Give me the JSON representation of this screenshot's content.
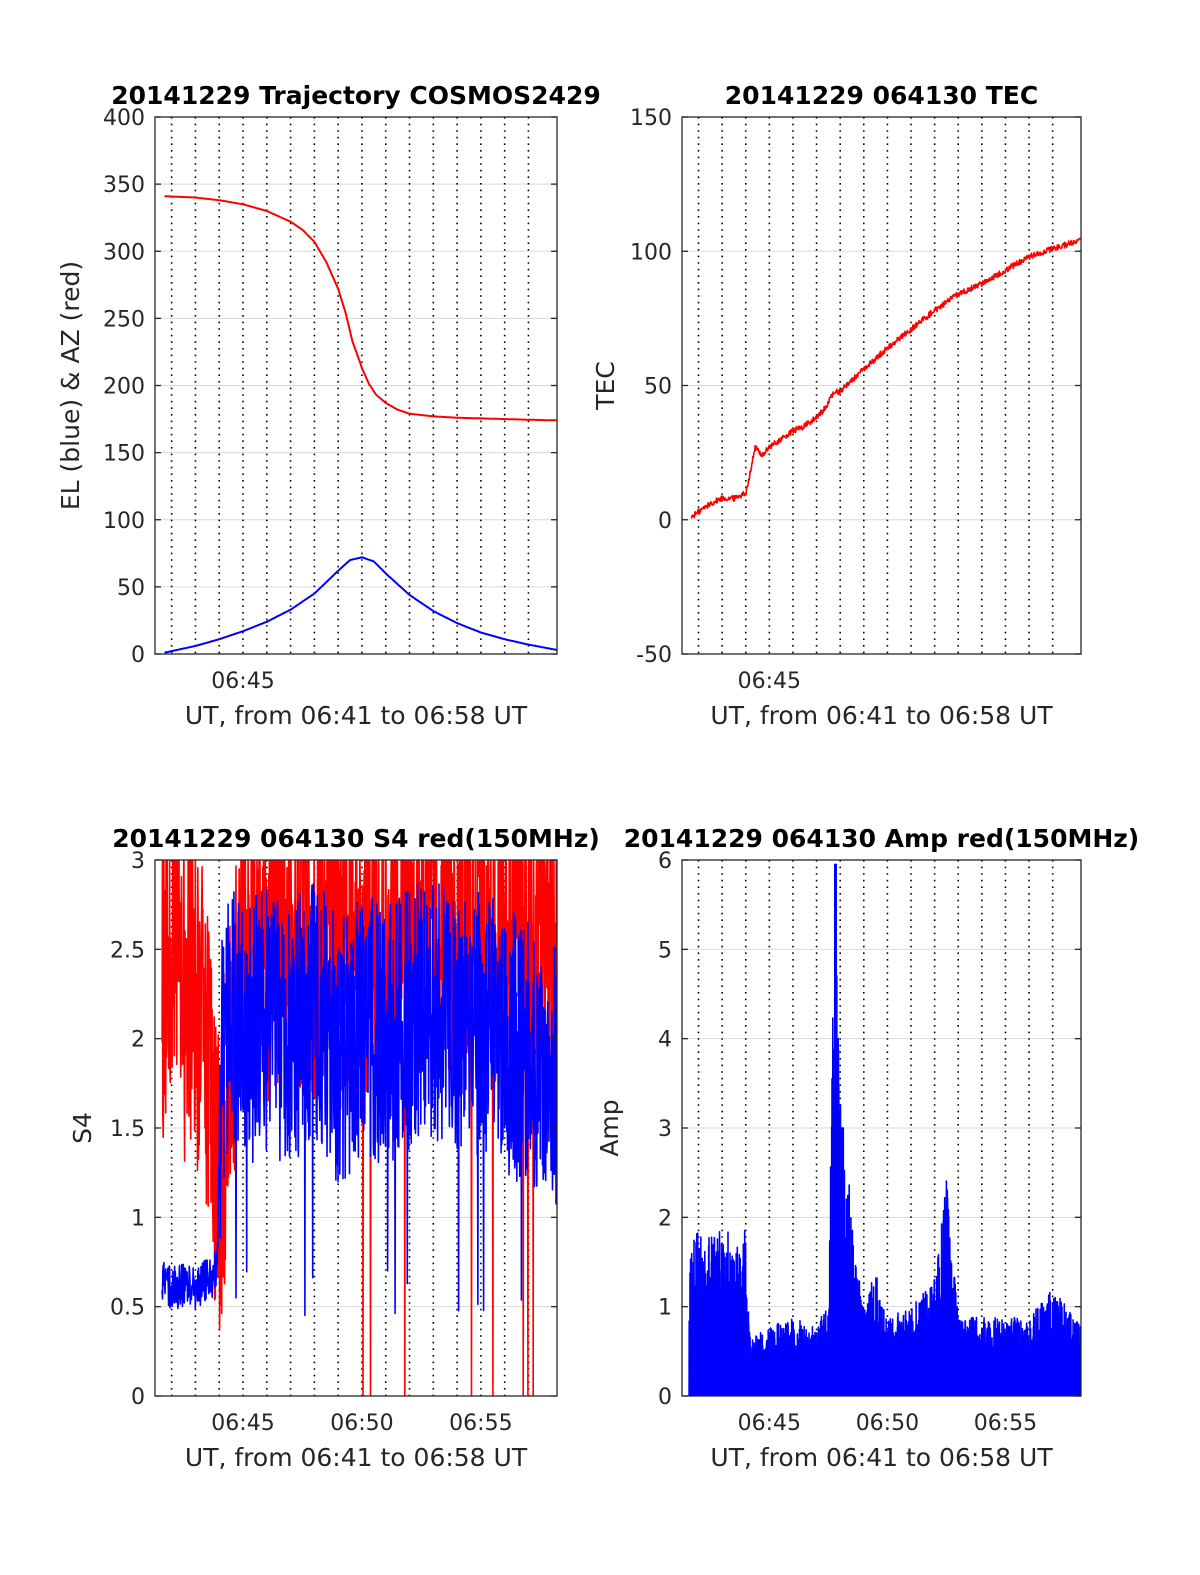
{
  "figure": {
    "colors": {
      "azimuth": "#ff0000",
      "elevation": "#0000ff",
      "tec": "#ff0000",
      "s4_red": "#ff0000",
      "s4_blue": "#0000ff",
      "amp": "#0000ff",
      "axes": "#262626",
      "grid": "#d9d9d9"
    }
  },
  "chart_data": [
    {
      "id": "trajectory",
      "type": "line",
      "title": "20141229 Trajectory COSMOS2429",
      "xlabel": "UT, from 06:41 to 06:58 UT",
      "ylabel": "EL (blue) & AZ (red)",
      "x_unit": "minutes after 06:00 UT",
      "xlim": [
        41.3,
        58.2
      ],
      "ylim": [
        0,
        400
      ],
      "yticks": [
        0,
        50,
        100,
        150,
        200,
        250,
        300,
        350,
        400
      ],
      "xtick_labels": [
        {
          "x": 45,
          "label": "06:45"
        }
      ],
      "vertical_dotted_grid_x": [
        42,
        43,
        44,
        45,
        46,
        47,
        48,
        49,
        50,
        51,
        52,
        53,
        54,
        55,
        56,
        57
      ],
      "grid": true,
      "series": [
        {
          "color": "#ff0000",
          "x": [
            41.7,
            43,
            44,
            45,
            46,
            47,
            47.5,
            48,
            48.5,
            49,
            49.3,
            49.6,
            50,
            50.3,
            50.6,
            51,
            51.5,
            52,
            53,
            54,
            55,
            56,
            57,
            58.2
          ],
          "y": [
            341,
            340,
            338,
            335,
            330,
            322,
            316,
            307,
            292,
            272,
            255,
            233,
            213,
            201,
            193,
            187,
            182,
            179,
            177,
            176,
            175.5,
            175,
            174.5,
            174
          ]
        },
        {
          "color": "#0000ff",
          "x": [
            41.7,
            43,
            44,
            45,
            46,
            47,
            48,
            49,
            49.5,
            50,
            50.5,
            51,
            52,
            53,
            54,
            55,
            56,
            57,
            58.2
          ],
          "y": [
            1,
            6,
            11,
            17,
            24,
            33,
            45,
            62,
            70,
            72,
            69,
            60,
            44,
            32,
            23,
            16,
            11,
            7,
            3
          ]
        }
      ]
    },
    {
      "id": "tec",
      "type": "line",
      "title": "20141229 064130 TEC",
      "xlabel": "UT, from 06:41 to 06:58 UT",
      "ylabel": "TEC",
      "x_unit": "minutes after 06:00 UT",
      "xlim": [
        41.3,
        58.2
      ],
      "ylim": [
        -50,
        150
      ],
      "yticks": [
        -50,
        0,
        50,
        100,
        150
      ],
      "xtick_labels": [
        {
          "x": 45,
          "label": "06:45"
        }
      ],
      "vertical_dotted_grid_x": [
        42,
        43,
        44,
        45,
        46,
        47,
        48,
        49,
        50,
        51,
        52,
        53,
        54,
        55,
        56,
        57
      ],
      "grid": true,
      "series": [
        {
          "color": "#ff0000",
          "x": [
            41.7,
            42,
            42.5,
            43,
            43.5,
            44,
            44.2,
            44.4,
            44.7,
            45,
            45.5,
            46,
            46.5,
            47,
            47.4,
            47.7,
            48,
            48.5,
            49,
            50,
            51,
            52,
            53,
            54,
            55,
            56,
            57,
            58.2
          ],
          "y": [
            1,
            3,
            6,
            8,
            8,
            10,
            18,
            27,
            24,
            27,
            30,
            33,
            35,
            38,
            42,
            47,
            48,
            52,
            56,
            64,
            71,
            78,
            84,
            88,
            93,
            98,
            101,
            104
          ]
        }
      ]
    },
    {
      "id": "s4",
      "type": "line",
      "title": "20141229 064130 S4 red(150MHz)",
      "xlabel": "UT, from 06:41 to 06:58 UT",
      "ylabel": "S4",
      "x_unit": "minutes after 06:00 UT",
      "xlim": [
        41.3,
        58.2
      ],
      "ylim": [
        0,
        3
      ],
      "yticks": [
        0,
        0.5,
        1,
        1.5,
        2,
        2.5,
        3
      ],
      "xtick_labels": [
        {
          "x": 45,
          "label": "06:45"
        },
        {
          "x": 50,
          "label": "06:50"
        },
        {
          "x": 55,
          "label": "06:55"
        }
      ],
      "vertical_dotted_grid_x": [
        42,
        43,
        44,
        45,
        46,
        47,
        48,
        49,
        50,
        51,
        52,
        53,
        54,
        55,
        56,
        57
      ],
      "grid": true,
      "series": [
        {
          "color": "#ff0000",
          "x": [
            41.6,
            42,
            42.5,
            43,
            43.5,
            43.8,
            44,
            45,
            46,
            47,
            48,
            49,
            50,
            51,
            52,
            53,
            54,
            55,
            56,
            57,
            58.2
          ],
          "y": [
            2.4,
            2.6,
            2.5,
            2.3,
            1.9,
            1.4,
            1.2,
            2.6,
            2.5,
            2.6,
            2.5,
            2.6,
            2.5,
            2.6,
            2.7,
            2.6,
            2.7,
            2.6,
            2.7,
            2.6,
            2.6
          ]
        },
        {
          "color": "#0000ff",
          "x": [
            41.6,
            42,
            42.5,
            43,
            43.5,
            43.9,
            44.1,
            44.5,
            45,
            46,
            47,
            48,
            49,
            50,
            51,
            52,
            53,
            54,
            55,
            56,
            57,
            58.2
          ],
          "y": [
            0.65,
            0.6,
            0.62,
            0.6,
            0.65,
            0.7,
            1.9,
            2.2,
            2.0,
            2.1,
            2.0,
            2.2,
            1.9,
            2.1,
            2.0,
            2.1,
            2.2,
            2.0,
            2.1,
            2.0,
            1.9,
            1.8
          ]
        }
      ]
    },
    {
      "id": "amp",
      "type": "line",
      "title": "20141229 064130 Amp red(150MHz)",
      "xlabel": "UT, from 06:41 to 06:58 UT",
      "ylabel": "Amp",
      "x_unit": "minutes after 06:00 UT",
      "xlim": [
        41.3,
        58.2
      ],
      "ylim": [
        0,
        6
      ],
      "yticks": [
        0,
        1,
        2,
        3,
        4,
        5,
        6
      ],
      "xtick_labels": [
        {
          "x": 45,
          "label": "06:45"
        },
        {
          "x": 50,
          "label": "06:50"
        },
        {
          "x": 55,
          "label": "06:55"
        }
      ],
      "vertical_dotted_grid_x": [
        42,
        43,
        44,
        45,
        46,
        47,
        48,
        49,
        50,
        51,
        52,
        53,
        54,
        55,
        56,
        57
      ],
      "grid": true,
      "series": [
        {
          "color": "#0000ff",
          "x": [
            41.6,
            42,
            42.5,
            43,
            43.5,
            44,
            44.2,
            45,
            46,
            47,
            47.5,
            47.8,
            48,
            49,
            49.5,
            50,
            51,
            52,
            52.5,
            53,
            54,
            55,
            56,
            57,
            58.2
          ],
          "y": [
            1.5,
            1.7,
            1.6,
            1.8,
            1.6,
            1.7,
            0.6,
            0.7,
            0.8,
            0.7,
            1.0,
            5.95,
            3.0,
            0.9,
            1.3,
            0.8,
            0.9,
            1.2,
            2.2,
            0.8,
            0.8,
            0.8,
            0.8,
            1.1,
            0.7
          ]
        }
      ]
    }
  ]
}
